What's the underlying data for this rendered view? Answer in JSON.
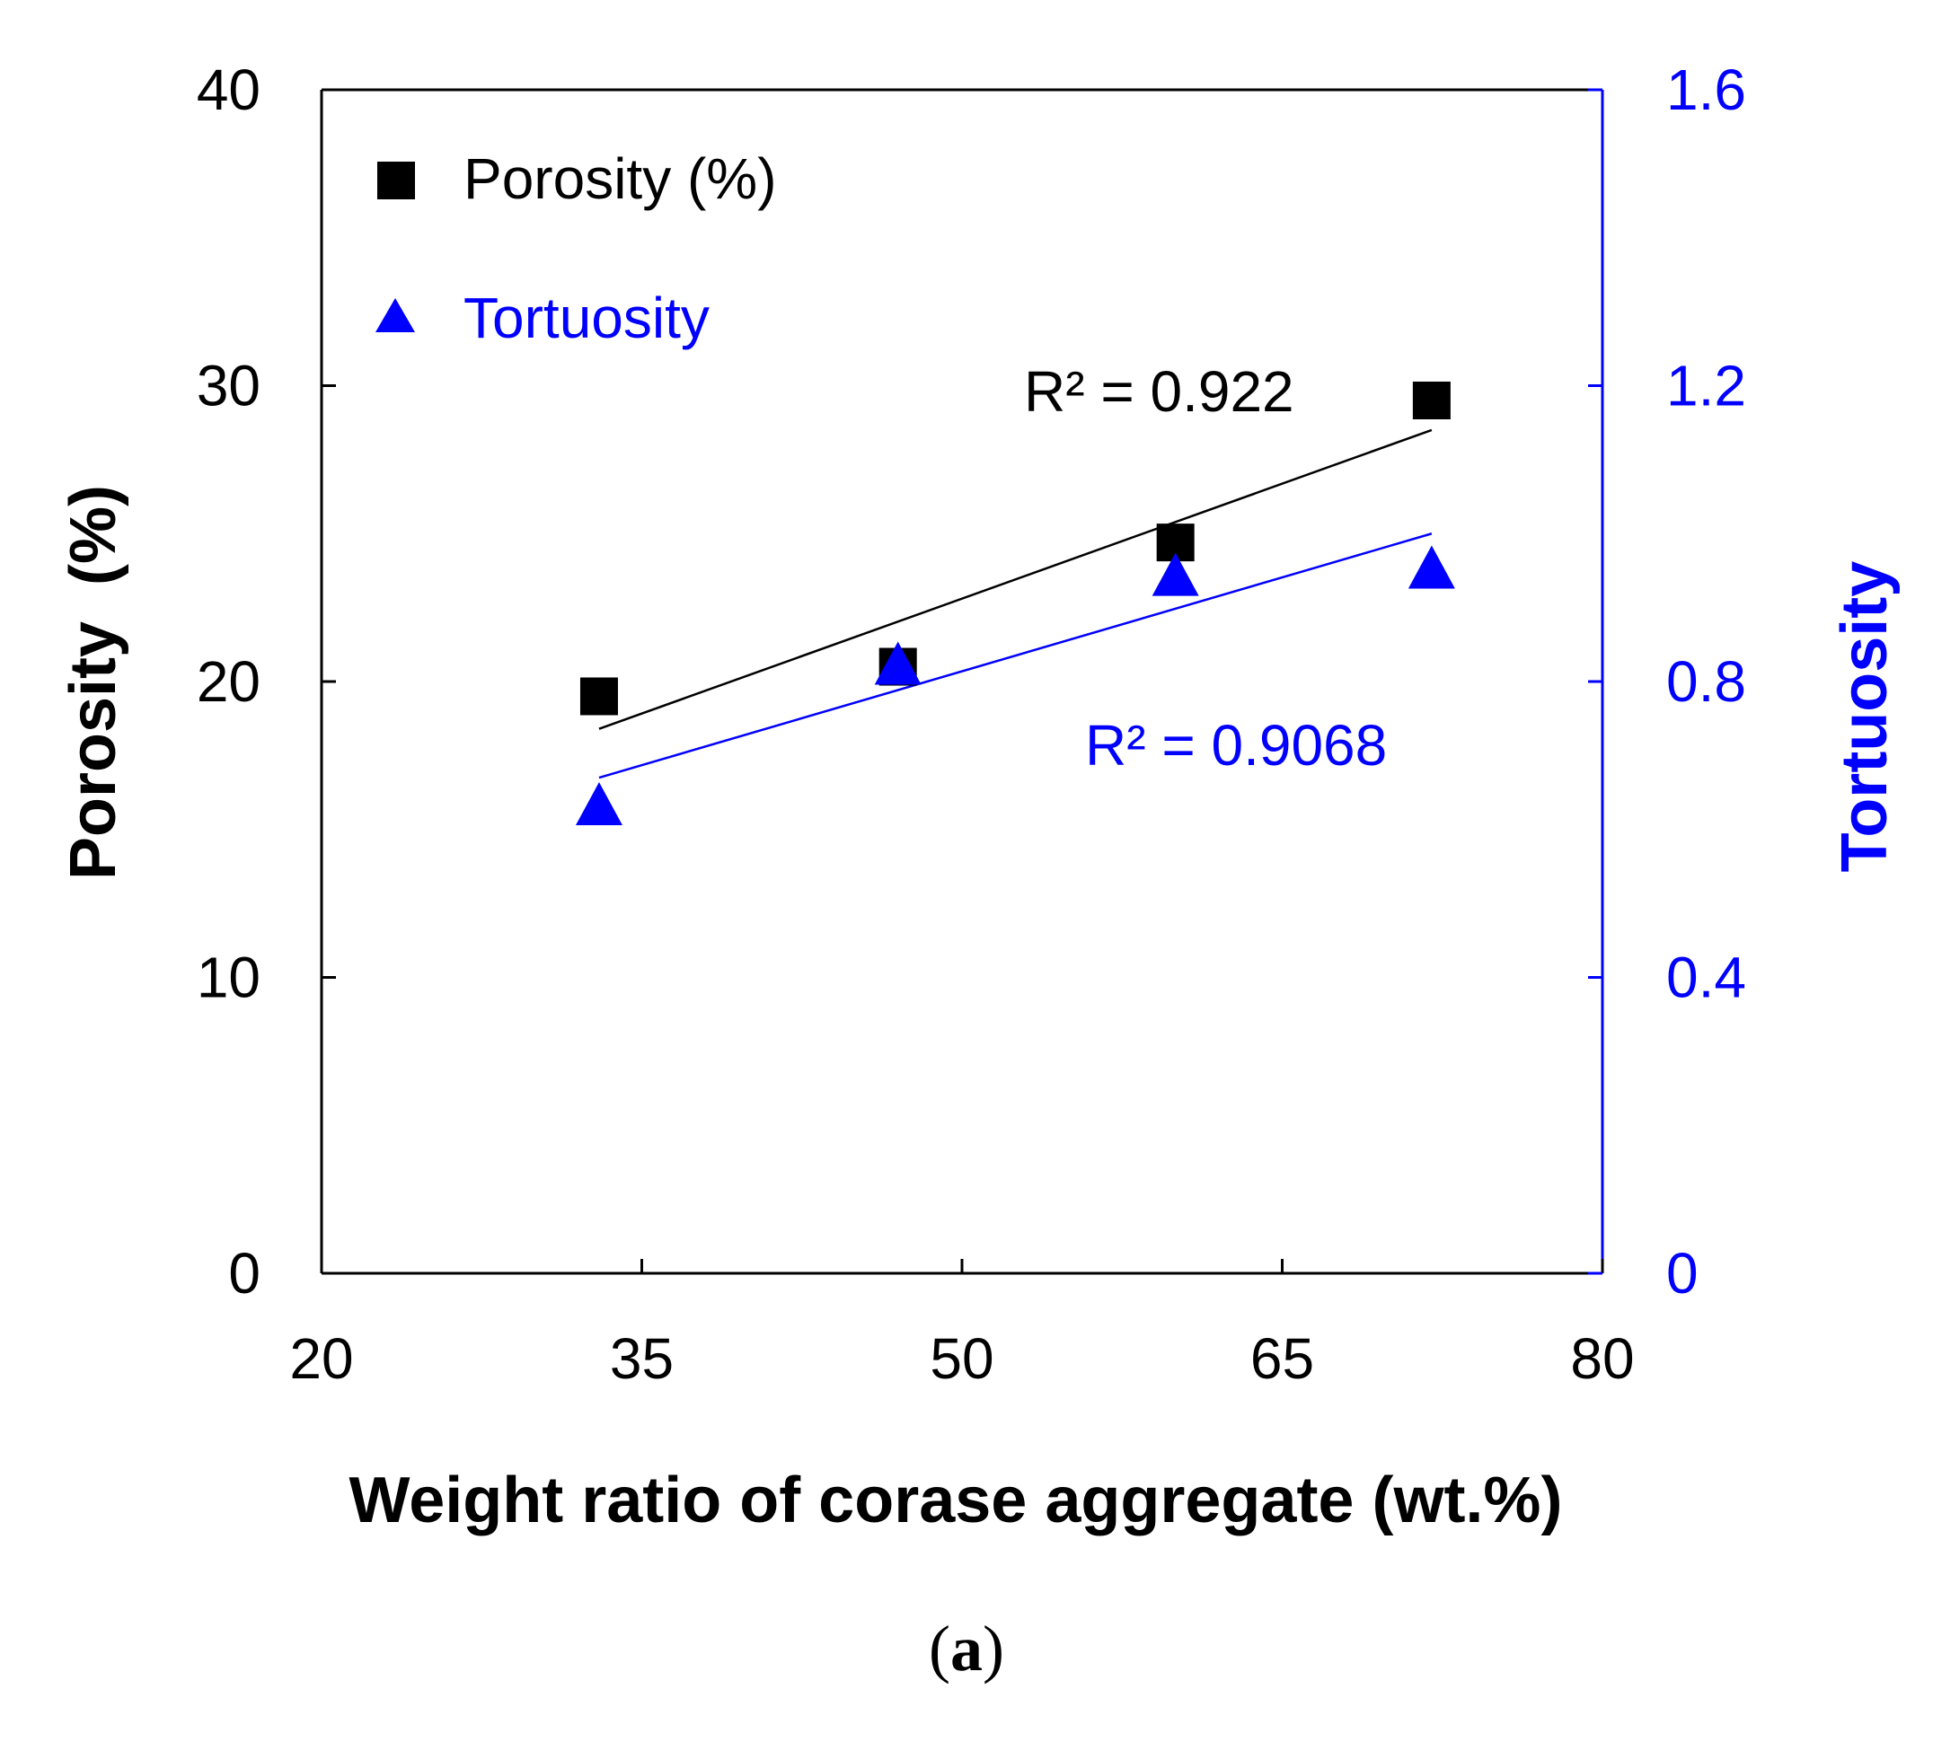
{
  "colors": {
    "porosity": "#000000",
    "tortuosity": "#0000ff",
    "axis": "#000000",
    "right_axis": "#0000ff"
  },
  "chart_data": {
    "type": "scatter",
    "xlabel": "Weight ratio of corase aggregate (wt.%)",
    "ylabel": "Porosity  (%)",
    "y2label": "Tortuosity",
    "xlim": [
      20,
      80
    ],
    "ylim": [
      0,
      40
    ],
    "y2lim": [
      0,
      1.6
    ],
    "xticks": [
      "20",
      "35",
      "50",
      "65",
      "80"
    ],
    "xtick_values": [
      20,
      35,
      50,
      65,
      80
    ],
    "yticks": [
      "0",
      "10",
      "20",
      "30",
      "40"
    ],
    "ytick_values": [
      0,
      10,
      20,
      30,
      40
    ],
    "y2ticks": [
      "0",
      "0.4",
      "0.8",
      "1.2",
      "1.6"
    ],
    "y2tick_values": [
      0,
      0.4,
      0.8,
      1.2,
      1.6
    ],
    "legend_position": "top-left",
    "series": [
      {
        "name": "Porosity (%)",
        "legend_label": "Porosity (%)",
        "axis": "left",
        "marker": "square",
        "x": [
          33,
          47,
          60,
          72
        ],
        "y": [
          19.5,
          20.5,
          24.7,
          29.5
        ],
        "trend": {
          "x": [
            33,
            72
          ],
          "y": [
            18.4,
            28.5
          ]
        },
        "r2_label": "R² = 0.922"
      },
      {
        "name": "Tortuosity",
        "legend_label": "Tortuosity",
        "axis": "right",
        "marker": "triangle",
        "x": [
          33,
          47,
          60,
          72
        ],
        "y": [
          0.63,
          0.82,
          0.94,
          0.95
        ],
        "trend": {
          "x": [
            33,
            72
          ],
          "y": [
            0.67,
            1.0
          ]
        },
        "r2_label": "R² = 0.9068"
      }
    ]
  },
  "caption": {
    "open": "(",
    "letter": "a",
    "close": ")"
  }
}
